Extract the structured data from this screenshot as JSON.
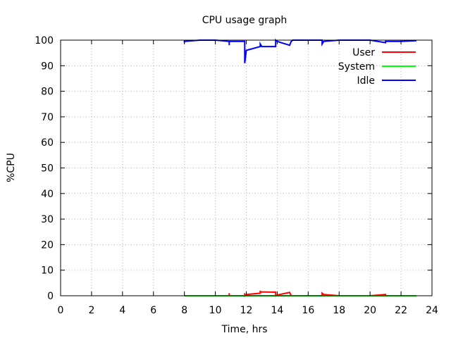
{
  "chart_data": {
    "type": "line",
    "title": "CPU usage graph",
    "xlabel": "Time, hrs",
    "ylabel": "%CPU",
    "xlim": [
      0,
      24
    ],
    "ylim": [
      0,
      100
    ],
    "xticks": [
      0,
      2,
      4,
      6,
      8,
      10,
      12,
      14,
      16,
      18,
      20,
      22,
      24
    ],
    "yticks": [
      0,
      10,
      20,
      30,
      40,
      50,
      60,
      70,
      80,
      90,
      100
    ],
    "grid": true,
    "legend_position": "top-right",
    "series": [
      {
        "name": "User",
        "color": "#ff0000",
        "x": [
          8,
          9,
          10,
          10.9,
          10.9,
          10.9,
          11,
          11.9,
          11.9,
          11.9,
          12,
          12.9,
          12.9,
          12.9,
          13,
          13.9,
          13.9,
          14,
          14.8,
          14.9,
          15,
          16,
          16.9,
          16.9,
          17,
          18,
          19,
          20,
          21,
          21,
          22,
          23
        ],
        "y": [
          0,
          0,
          0,
          0,
          1,
          0,
          0,
          0,
          1,
          0,
          0.5,
          1,
          2,
          1.5,
          1.5,
          1.4,
          0,
          0.3,
          1.3,
          0,
          0,
          0,
          0,
          1,
          0.5,
          0,
          0,
          0,
          0.5,
          0,
          0,
          0
        ]
      },
      {
        "name": "System",
        "color": "#00ff00",
        "x": [
          8,
          10,
          12,
          14,
          16,
          18,
          20,
          22,
          23
        ],
        "y": [
          0,
          0,
          0,
          0,
          0,
          0,
          0,
          0,
          0
        ]
      },
      {
        "name": "Idle",
        "color": "#0000ff",
        "x": [
          8,
          8,
          9,
          10,
          10.9,
          10.9,
          10.9,
          11,
          11.9,
          11.9,
          12,
          12.9,
          12.9,
          12.9,
          13,
          13.9,
          13.9,
          14,
          14.8,
          14.9,
          15,
          16,
          16.9,
          16.9,
          17,
          18,
          19,
          20,
          21,
          21,
          22,
          23
        ],
        "y": [
          99,
          99.5,
          100,
          100,
          99.5,
          98,
          99.5,
          99.5,
          99.5,
          91,
          96,
          97.5,
          97.5,
          98.5,
          97.5,
          97.5,
          100,
          99.5,
          98,
          99.5,
          100,
          100,
          100,
          98.5,
          99.5,
          100,
          100,
          100,
          99,
          99.5,
          99.5,
          99.8
        ]
      }
    ]
  }
}
